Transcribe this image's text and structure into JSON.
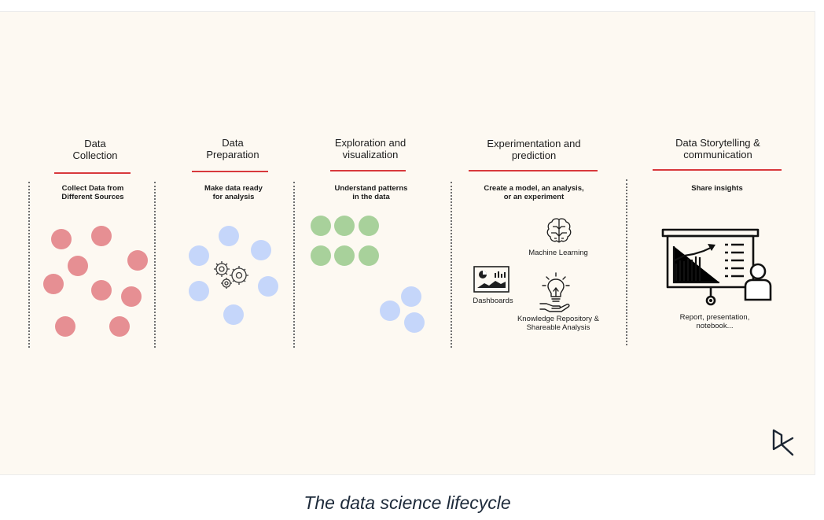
{
  "stages": [
    {
      "title": [
        "Data",
        "Collection"
      ],
      "subtitle": [
        "Collect Data from",
        "Different Sources"
      ]
    },
    {
      "title": [
        "Data",
        "Preparation"
      ],
      "subtitle": [
        "Make data ready",
        "for analysis"
      ]
    },
    {
      "title": [
        "Exploration and",
        "visualization"
      ],
      "subtitle": [
        "Understand patterns",
        "in the data"
      ]
    },
    {
      "title": [
        "Experimentation and",
        "prediction"
      ],
      "subtitle": [
        "Create a model, an analysis,",
        "or an experiment"
      ]
    },
    {
      "title": [
        "Data Storytelling &",
        "communication"
      ],
      "subtitle": [
        "Share insights"
      ]
    }
  ],
  "experiment_items": {
    "ml": "Machine Learning",
    "dashboards": "Dashboards",
    "knowledge": [
      "Knowledge Repository &",
      "Shareable Analysis"
    ]
  },
  "storytelling_label": [
    "Report, presentation,",
    "notebook..."
  ],
  "caption": "The data science lifecycle",
  "colors": {
    "background": "#fdf9f2",
    "accent_red": "#d8393c",
    "dot_red": "#e68f93",
    "dot_blue": "#c5d6fa",
    "dot_green": "#a8d19b"
  },
  "icons": [
    "gears-icon",
    "brain-icon",
    "dashboard-icon",
    "lightbulb-hand-icon",
    "presentation-board-icon",
    "datacamp-logo-icon"
  ]
}
